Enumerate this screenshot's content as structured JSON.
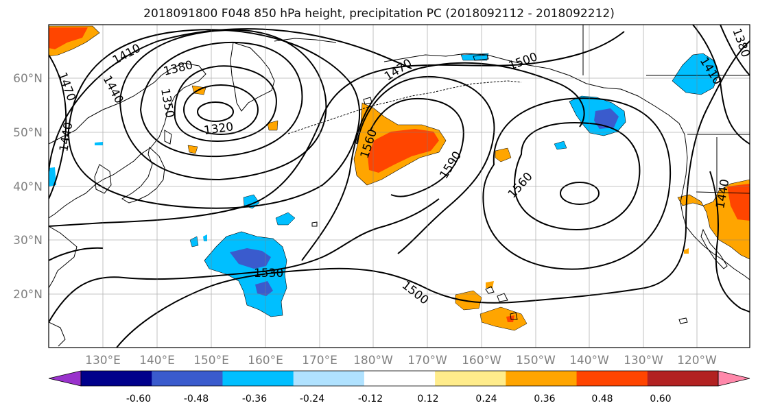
{
  "title": "2018091800 F048 850 hPa height, precipitation PC (2018092112 - 2018092212)",
  "lat_labels": [
    "60°N",
    "50°N",
    "40°N",
    "30°N",
    "20°N"
  ],
  "lon_labels": [
    "130°E",
    "140°E",
    "150°E",
    "160°E",
    "170°E",
    "180°W",
    "170°W",
    "160°W",
    "150°W",
    "140°W",
    "130°W",
    "120°W"
  ],
  "contour_labels": [
    "1410",
    "1380",
    "1350",
    "1320",
    "1470",
    "1440",
    "1440",
    "1470",
    "1500",
    "1560",
    "1590",
    "1560",
    "1530",
    "1500",
    "1380",
    "1410",
    "1440"
  ],
  "colorbar": {
    "tick_labels": [
      "-0.60",
      "-0.48",
      "-0.36",
      "-0.24",
      "-0.12",
      "0.12",
      "0.24",
      "0.36",
      "0.48",
      "0.60"
    ],
    "colors": [
      "#9932cc",
      "#00008b",
      "#3a5bcd",
      "#00bfff",
      "#b0e2ff",
      "#ffffff",
      "#ffec8b",
      "#ffa500",
      "#ff4500",
      "#b22222",
      "#ff88aa"
    ]
  }
}
